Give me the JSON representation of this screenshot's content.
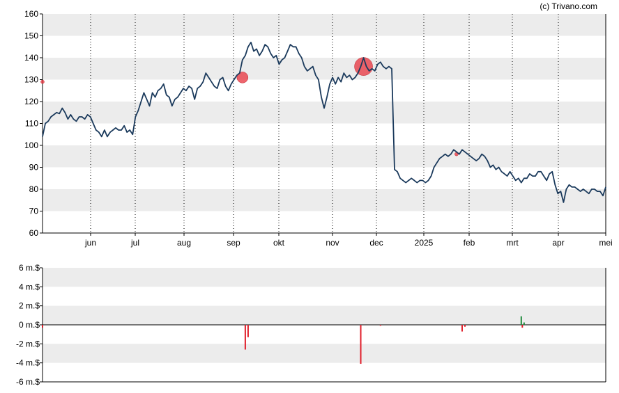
{
  "credit": "(c) Trivano.com",
  "colors": {
    "band": "#ececec",
    "price_line": "#1b3a5c",
    "marker": "#e8323c",
    "sell_bar": "#e01e2a",
    "buy_bar": "#1e8a3c",
    "axis": "#000000"
  },
  "chart_data": [
    {
      "type": "line",
      "title": "",
      "xlabel": "",
      "ylabel": "",
      "ylim": [
        60,
        160
      ],
      "y_ticks": [
        "60",
        "70",
        "80",
        "90",
        "100",
        "110",
        "120",
        "130",
        "140",
        "150",
        "160"
      ],
      "x_ticks": [
        "jun",
        "jul",
        "aug",
        "sep",
        "okt",
        "nov",
        "dec",
        "2025",
        "feb",
        "mrt",
        "apr",
        "mei"
      ],
      "bands": "alternating grey horizontal bands",
      "series": [
        {
          "points": [
            [
              "mei-20",
              104
            ],
            [
              "mei-21",
              110
            ],
            [
              "mei-22",
              111
            ],
            [
              "mei-23",
              113
            ],
            [
              "mei-24",
              114
            ],
            [
              "mei-27",
              115
            ],
            [
              "mei-28",
              114.5
            ],
            [
              "mei-29",
              117
            ],
            [
              "mei-30",
              115
            ],
            [
              "mei-31",
              112
            ],
            [
              "jun-03",
              114
            ],
            [
              "jun-04",
              112
            ],
            [
              "jun-05",
              111
            ],
            [
              "jun-06",
              113
            ],
            [
              "jun-07",
              113
            ],
            [
              "jun-10",
              112
            ],
            [
              "jun-11",
              114
            ],
            [
              "jun-12",
              113
            ],
            [
              "jun-13",
              110
            ],
            [
              "jun-14",
              107
            ],
            [
              "jun-17",
              106
            ],
            [
              "jun-18",
              104
            ],
            [
              "jun-19",
              107
            ],
            [
              "jun-20",
              104
            ],
            [
              "jun-21",
              106
            ],
            [
              "jun-24",
              107
            ],
            [
              "jun-25",
              108
            ],
            [
              "jun-26",
              107
            ],
            [
              "jun-27",
              107
            ],
            [
              "jun-28",
              109
            ],
            [
              "jul-01",
              106
            ],
            [
              "jul-02",
              107
            ],
            [
              "jul-03",
              105
            ],
            [
              "jul-05",
              113
            ],
            [
              "jul-08",
              116
            ],
            [
              "jul-09",
              120
            ],
            [
              "jul-10",
              124
            ],
            [
              "jul-11",
              121
            ],
            [
              "jul-12",
              118
            ],
            [
              "jul-15",
              124
            ],
            [
              "jul-16",
              122
            ],
            [
              "jul-17",
              125
            ],
            [
              "jul-18",
              126
            ],
            [
              "jul-19",
              128
            ],
            [
              "jul-22",
              123
            ],
            [
              "jul-23",
              122
            ],
            [
              "jul-24",
              118
            ],
            [
              "jul-25",
              121
            ],
            [
              "jul-26",
              122
            ],
            [
              "jul-29",
              124
            ],
            [
              "jul-30",
              126
            ],
            [
              "jul-31",
              125
            ],
            [
              "aug-01",
              127
            ],
            [
              "aug-02",
              126
            ],
            [
              "aug-05",
              121
            ],
            [
              "aug-06",
              126
            ],
            [
              "aug-07",
              127
            ],
            [
              "aug-08",
              129
            ],
            [
              "aug-09",
              133
            ],
            [
              "aug-12",
              131
            ],
            [
              "aug-13",
              129
            ],
            [
              "aug-14",
              127
            ],
            [
              "aug-15",
              126
            ],
            [
              "aug-16",
              130
            ],
            [
              "aug-19",
              131
            ],
            [
              "aug-20",
              127
            ],
            [
              "aug-21",
              125
            ],
            [
              "aug-22",
              128
            ],
            [
              "aug-23",
              130
            ],
            [
              "aug-26",
              132
            ],
            [
              "aug-27",
              133
            ],
            [
              "aug-28",
              139
            ],
            [
              "aug-29",
              141
            ],
            [
              "aug-30",
              145
            ],
            [
              "sep-03",
              147
            ],
            [
              "sep-04",
              143
            ],
            [
              "sep-05",
              144
            ],
            [
              "sep-06",
              141
            ],
            [
              "sep-09",
              143
            ],
            [
              "sep-10",
              146
            ],
            [
              "sep-11",
              145
            ],
            [
              "sep-12",
              142
            ],
            [
              "sep-13",
              140
            ],
            [
              "sep-16",
              141
            ],
            [
              "sep-17",
              137
            ],
            [
              "sep-18",
              139
            ],
            [
              "sep-19",
              140
            ],
            [
              "sep-20",
              143
            ],
            [
              "sep-23",
              146
            ],
            [
              "sep-24",
              145
            ],
            [
              "sep-25",
              145
            ],
            [
              "sep-26",
              142
            ],
            [
              "sep-27",
              140
            ],
            [
              "sep-30",
              136
            ],
            [
              "okt-01",
              134
            ],
            [
              "okt-02",
              135
            ],
            [
              "okt-03",
              136
            ],
            [
              "okt-04",
              132
            ],
            [
              "okt-07",
              130
            ],
            [
              "okt-08",
              122
            ],
            [
              "okt-09",
              117
            ],
            [
              "okt-10",
              122
            ],
            [
              "okt-11",
              128
            ],
            [
              "okt-14",
              131
            ],
            [
              "okt-15",
              128
            ],
            [
              "okt-16",
              131
            ],
            [
              "okt-17",
              129
            ],
            [
              "okt-18",
              133
            ],
            [
              "okt-21",
              131
            ],
            [
              "okt-22",
              132
            ],
            [
              "okt-23",
              130
            ],
            [
              "okt-24",
              131
            ],
            [
              "okt-25",
              133
            ],
            [
              "okt-28",
              136
            ],
            [
              "okt-29",
              140
            ],
            [
              "okt-30",
              136
            ],
            [
              "okt-31",
              134
            ],
            [
              "nov-01",
              135
            ],
            [
              "nov-04",
              134
            ],
            [
              "nov-05",
              137
            ],
            [
              "nov-06",
              138
            ],
            [
              "nov-07",
              136
            ],
            [
              "nov-08",
              135
            ],
            [
              "nov-11",
              136
            ],
            [
              "nov-12",
              135
            ],
            [
              "nov-13",
              89
            ],
            [
              "nov-14",
              88
            ],
            [
              "nov-15",
              85
            ],
            [
              "nov-18",
              84
            ],
            [
              "nov-19",
              83
            ],
            [
              "nov-20",
              84
            ],
            [
              "nov-21",
              85
            ],
            [
              "nov-22",
              84
            ],
            [
              "nov-25",
              83
            ],
            [
              "nov-26",
              84
            ],
            [
              "nov-27",
              84
            ],
            [
              "nov-29",
              83
            ],
            [
              "dec-02",
              84
            ],
            [
              "dec-03",
              86
            ],
            [
              "dec-04",
              90
            ],
            [
              "dec-05",
              92
            ],
            [
              "dec-06",
              94
            ],
            [
              "dec-09",
              95
            ],
            [
              "dec-10",
              96
            ],
            [
              "dec-11",
              95
            ],
            [
              "dec-12",
              96
            ],
            [
              "dec-13",
              98
            ],
            [
              "dec-16",
              97
            ],
            [
              "dec-17",
              96
            ],
            [
              "dec-18",
              98
            ],
            [
              "dec-19",
              97
            ],
            [
              "dec-20",
              96
            ],
            [
              "dec-23",
              95
            ],
            [
              "dec-24",
              94
            ],
            [
              "dec-26",
              93
            ],
            [
              "dec-27",
              94
            ],
            [
              "dec-30",
              96
            ],
            [
              "dec-31",
              95
            ],
            [
              "jan-02",
              93
            ],
            [
              "jan-03",
              90
            ],
            [
              "jan-06",
              91
            ],
            [
              "jan-07",
              89
            ],
            [
              "jan-08",
              90
            ],
            [
              "jan-09",
              88
            ],
            [
              "jan-10",
              87
            ],
            [
              "jan-13",
              86
            ],
            [
              "jan-14",
              88
            ],
            [
              "jan-15",
              86
            ],
            [
              "jan-16",
              84
            ],
            [
              "jan-17",
              85
            ],
            [
              "jan-21",
              83
            ],
            [
              "jan-22",
              85
            ],
            [
              "jan-23",
              85
            ],
            [
              "jan-24",
              87
            ],
            [
              "jan-27",
              86
            ],
            [
              "jan-28",
              86
            ],
            [
              "jan-29",
              88
            ],
            [
              "jan-30",
              88
            ],
            [
              "jan-31",
              86
            ],
            [
              "feb-03",
              84
            ],
            [
              "feb-04",
              87
            ],
            [
              "feb-05",
              88
            ],
            [
              "feb-06",
              82
            ],
            [
              "feb-07",
              78
            ],
            [
              "feb-10",
              79
            ],
            [
              "feb-11",
              74
            ],
            [
              "feb-12",
              80
            ],
            [
              "feb-13",
              82
            ],
            [
              "feb-14",
              81
            ],
            [
              "feb-18",
              81
            ],
            [
              "feb-19",
              80
            ],
            [
              "feb-20",
              79
            ],
            [
              "feb-21",
              80
            ],
            [
              "feb-24",
              79
            ],
            [
              "feb-25",
              78
            ],
            [
              "feb-26",
              80
            ],
            [
              "feb-27",
              80
            ],
            [
              "feb-28",
              79
            ],
            [
              "mrt-03",
              79
            ],
            [
              "mrt-04",
              77
            ],
            [
              "mrt-05",
              81
            ]
          ]
        }
      ],
      "markers": [
        {
          "label": "sep",
          "x": "aug-28",
          "y": 131,
          "size": "medium"
        },
        {
          "label": "nov",
          "x": "okt-29",
          "y": 136,
          "size": "large"
        },
        {
          "label": "jan",
          "x": "dec-16",
          "y": 96,
          "size": "tiny"
        },
        {
          "label": "aug",
          "x": "aug-24",
          "y": 129,
          "size": "tiny"
        }
      ]
    },
    {
      "type": "bar",
      "title": "",
      "xlabel": "",
      "ylabel": "",
      "ylim": [
        -6,
        6
      ],
      "y_ticks": [
        "6 m.$",
        "4 m.$",
        "2 m.$",
        "0 m.$",
        "-2 m.$",
        "-4 m.$",
        "-6 m.$"
      ],
      "bands": "alternating grey horizontal bands",
      "bars": [
        {
          "x": "aug-24",
          "value": -0.3,
          "kind": "sell"
        },
        {
          "x": "aug-29",
          "value": -2.6,
          "kind": "sell"
        },
        {
          "x": "aug-30",
          "value": -1.3,
          "kind": "sell"
        },
        {
          "x": "okt-28",
          "value": -4.1,
          "kind": "sell"
        },
        {
          "x": "nov-06",
          "value": -0.1,
          "kind": "sell"
        },
        {
          "x": "dec-18",
          "value": -0.7,
          "kind": "sell"
        },
        {
          "x": "dec-19",
          "value": -0.2,
          "kind": "sell"
        },
        {
          "x": "jan-21",
          "value": 0.9,
          "kind": "buy"
        },
        {
          "x": "jan-21b",
          "value": -0.3,
          "kind": "sell"
        },
        {
          "x": "jan-22",
          "value": 0.25,
          "kind": "buy"
        }
      ]
    }
  ]
}
